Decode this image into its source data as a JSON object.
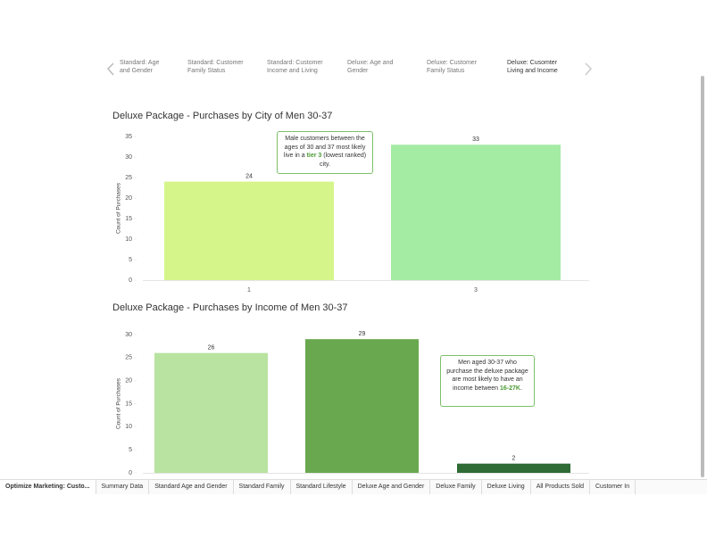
{
  "story_points": [
    "Standard: Age and Gender",
    "Standard: Customer Family Status",
    "Standard: Customer Income and Living",
    "Deluxe: Age and Gender",
    "Deluxe: Customer Family Status",
    "Deluxe: Cusomter Living and Income"
  ],
  "tabs": [
    "Optimize Marketing: Custo...",
    "Summary Data",
    "Standard Age and Gender",
    "Standard Family",
    "Standard Lifestyle",
    "Deluxe Age and Gender",
    "Deluxe Family",
    "Deluxe Living",
    "All Products Sold",
    "Customer In"
  ],
  "chart_data": [
    {
      "type": "bar",
      "title": "Deluxe Package - Purchases by City of Men 30-37",
      "ylabel": "Count of Purchases",
      "categories": [
        "1",
        "3"
      ],
      "values": [
        24,
        33
      ],
      "colors": [
        "#d5f58b",
        "#a4eba4"
      ],
      "ylim": [
        0,
        35
      ],
      "yticks": [
        0,
        5,
        10,
        15,
        20,
        25,
        30,
        35
      ],
      "annotation": [
        "Male customers between the ages of 30 and 37 most likely live in a ",
        "tier 3",
        " (lowest ranked) city."
      ]
    },
    {
      "type": "bar",
      "title": "Deluxe Package - Purchases by Income of Men 30-37",
      "ylabel": "Count of Purchases",
      "categories": [
        null,
        null,
        null
      ],
      "values": [
        26,
        29,
        2
      ],
      "colors": [
        "#b8e3a0",
        "#6aa84f",
        "#2f6b35"
      ],
      "ylim": [
        0,
        30
      ],
      "yticks": [
        0,
        5,
        10,
        15,
        20,
        25,
        30
      ],
      "annotation": [
        "Men aged 30-37 who purchase the deluxe package are most likely to have an income between ",
        "16-27K",
        "."
      ]
    }
  ]
}
